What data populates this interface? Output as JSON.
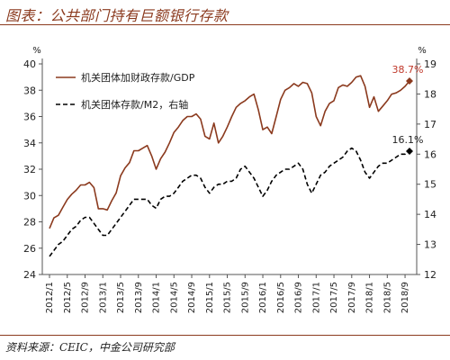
{
  "header": {
    "title": "图表：公共部门持有巨额银行存款"
  },
  "footer": {
    "source": "资料来源：CEIC，中金公司研究部"
  },
  "chart_data": {
    "type": "line",
    "title": "图表：公共部门持有巨额银行存款",
    "left_axis": {
      "unit": "%",
      "ylim": [
        24,
        40
      ],
      "ticks": [
        24,
        26,
        28,
        30,
        32,
        34,
        36,
        38,
        40
      ]
    },
    "right_axis": {
      "unit": "%",
      "ylim": [
        12,
        19
      ],
      "ticks": [
        12,
        13,
        14,
        15,
        16,
        17,
        18,
        19
      ]
    },
    "x_tick_labels": [
      "2012/1",
      "2012/5",
      "2012/9",
      "2013/1",
      "2013/5",
      "2013/9",
      "2014/1",
      "2014/5",
      "2014/9",
      "2015/1",
      "2015/5",
      "2015/9",
      "2016/1",
      "2016/5",
      "2016/9",
      "2017/1",
      "2017/5",
      "2017/9",
      "2018/1",
      "2018/5",
      "2018/9"
    ],
    "grid": false,
    "legend_position": "top-left",
    "series": [
      {
        "name": "机关团体加财政存款/GDP",
        "axis": "left",
        "color": "#8B3A1E",
        "style": "solid",
        "end_label": "38.7%",
        "values": [
          27.5,
          28.3,
          28.5,
          29.1,
          29.7,
          30.1,
          30.4,
          30.8,
          30.8,
          31.0,
          30.6,
          29.0,
          29.0,
          28.9,
          29.6,
          30.2,
          31.5,
          32.1,
          32.5,
          33.4,
          33.4,
          33.6,
          33.8,
          33.0,
          32.0,
          32.8,
          33.3,
          34.0,
          34.8,
          35.2,
          35.7,
          36.0,
          36.0,
          36.2,
          35.8,
          34.5,
          34.3,
          35.5,
          34.0,
          34.5,
          35.2,
          36.0,
          36.7,
          37.0,
          37.2,
          37.5,
          37.7,
          36.5,
          35.0,
          35.2,
          34.7,
          36.0,
          37.3,
          38.0,
          38.2,
          38.5,
          38.3,
          38.6,
          38.5,
          37.8,
          36.0,
          35.3,
          36.4,
          37.0,
          37.2,
          38.2,
          38.4,
          38.3,
          38.6,
          39.0,
          39.1,
          38.3,
          36.7,
          37.5,
          36.4,
          36.8,
          37.2,
          37.7,
          37.8,
          38.0,
          38.3,
          38.7
        ]
      },
      {
        "name": "机关团体存款/M2，右轴",
        "axis": "right",
        "color": "#000000",
        "style": "dashed",
        "end_label": "16.1%",
        "values": [
          12.6,
          12.8,
          13.0,
          13.1,
          13.3,
          13.5,
          13.6,
          13.8,
          13.9,
          13.9,
          13.7,
          13.5,
          13.3,
          13.3,
          13.5,
          13.7,
          13.9,
          14.1,
          14.3,
          14.5,
          14.5,
          14.5,
          14.5,
          14.3,
          14.2,
          14.5,
          14.6,
          14.6,
          14.7,
          14.9,
          15.1,
          15.2,
          15.3,
          15.3,
          15.2,
          14.9,
          14.7,
          14.9,
          15.0,
          15.0,
          15.1,
          15.1,
          15.2,
          15.5,
          15.6,
          15.4,
          15.2,
          14.9,
          14.6,
          14.8,
          15.1,
          15.3,
          15.4,
          15.5,
          15.5,
          15.6,
          15.7,
          15.5,
          15.0,
          14.7,
          15.0,
          15.3,
          15.4,
          15.6,
          15.7,
          15.8,
          15.9,
          16.1,
          16.2,
          16.1,
          15.8,
          15.4,
          15.2,
          15.4,
          15.6,
          15.7,
          15.7,
          15.8,
          15.9,
          16.0,
          16.0,
          16.1
        ]
      }
    ]
  }
}
